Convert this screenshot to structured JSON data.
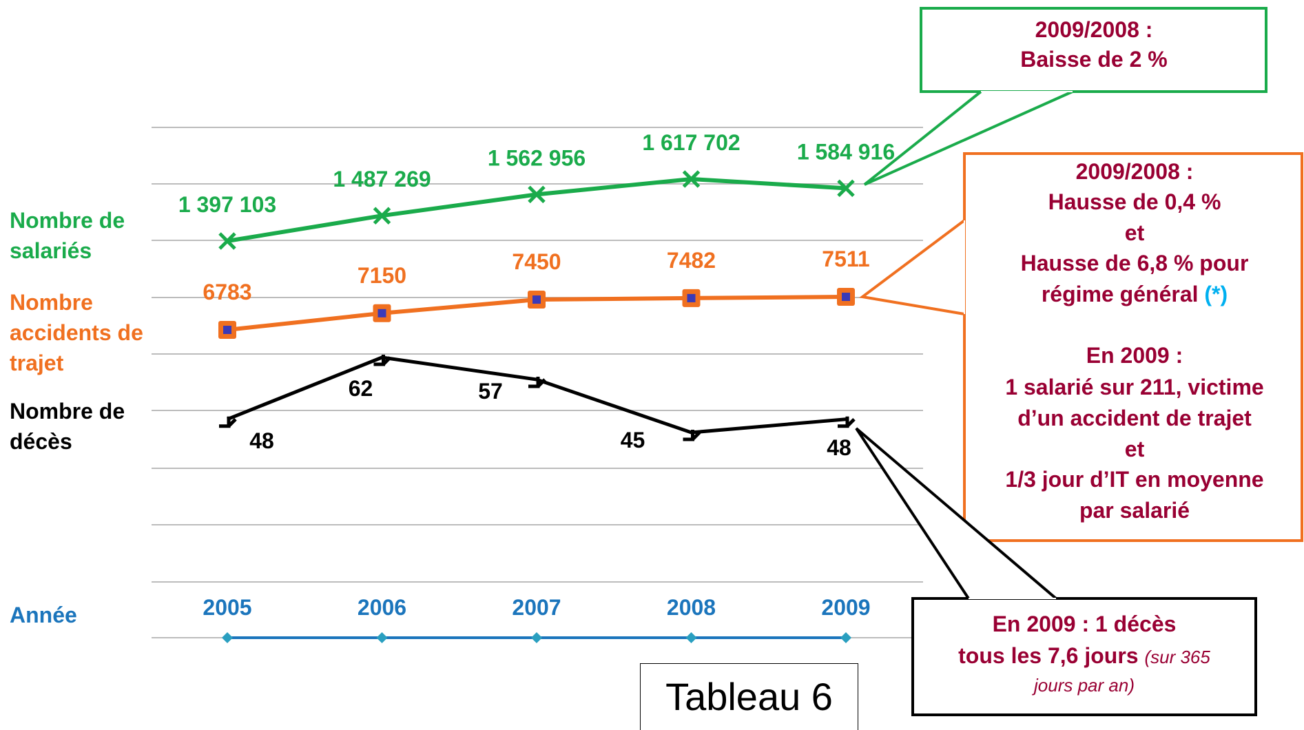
{
  "chart_data": {
    "type": "line",
    "x_label": "Année",
    "categories": [
      "2005",
      "2006",
      "2007",
      "2008",
      "2009"
    ],
    "grid": true,
    "series": [
      {
        "name": "Nombre de salariés",
        "color": "#1aab4b",
        "marker": "x",
        "values": [
          1397103,
          1487269,
          1562956,
          1617702,
          1584916
        ],
        "value_labels": [
          "1 397 103",
          "1 487 269",
          "1 562 956",
          "1 617 702",
          "1 584 916"
        ]
      },
      {
        "name": "Nombre accidents de trajet",
        "color": "#f07020",
        "marker": "square",
        "values": [
          6783,
          7150,
          7450,
          7482,
          7511
        ]
      },
      {
        "name": "Nombre de décès",
        "color": "#000000",
        "marker": "tick",
        "values": [
          48,
          62,
          57,
          45,
          48
        ]
      }
    ],
    "annotations": [
      {
        "border": "#1aab4b",
        "lines": [
          [
            {
              "text": "2009/2008 :"
            }
          ],
          [
            {
              "text": "Baisse de 2 %"
            }
          ]
        ]
      },
      {
        "border": "#f07020",
        "lines": [
          [
            {
              "text": "2009/2008 :"
            }
          ],
          [
            {
              "text": "Hausse de 0,4 %"
            }
          ],
          [
            {
              "text": "et"
            }
          ],
          [
            {
              "text": "Hausse de 6,8 % pour"
            }
          ],
          [
            {
              "text": "régime général "
            },
            {
              "text": "(*)",
              "color": "#00b0f0"
            }
          ],
          [
            {
              "text": "En 2009 :"
            }
          ],
          [
            {
              "text": "1 salarié sur  211, victime"
            }
          ],
          [
            {
              "text": "d’un accident de trajet"
            }
          ],
          [
            {
              "text": "et"
            }
          ],
          [
            {
              "text": "1/3 jour d’IT en moyenne"
            }
          ],
          [
            {
              "text": "par salarié"
            }
          ]
        ]
      },
      {
        "border": "#000000",
        "lines": [
          [
            {
              "text": "En 2009 : 1 décès"
            }
          ],
          [
            {
              "text": "tous les 7,6 jours "
            },
            {
              "text": "(sur 365",
              "italic": true
            }
          ],
          [
            {
              "text": "jours par an)",
              "italic": true
            }
          ]
        ]
      }
    ],
    "caption": "Tableau 6"
  }
}
